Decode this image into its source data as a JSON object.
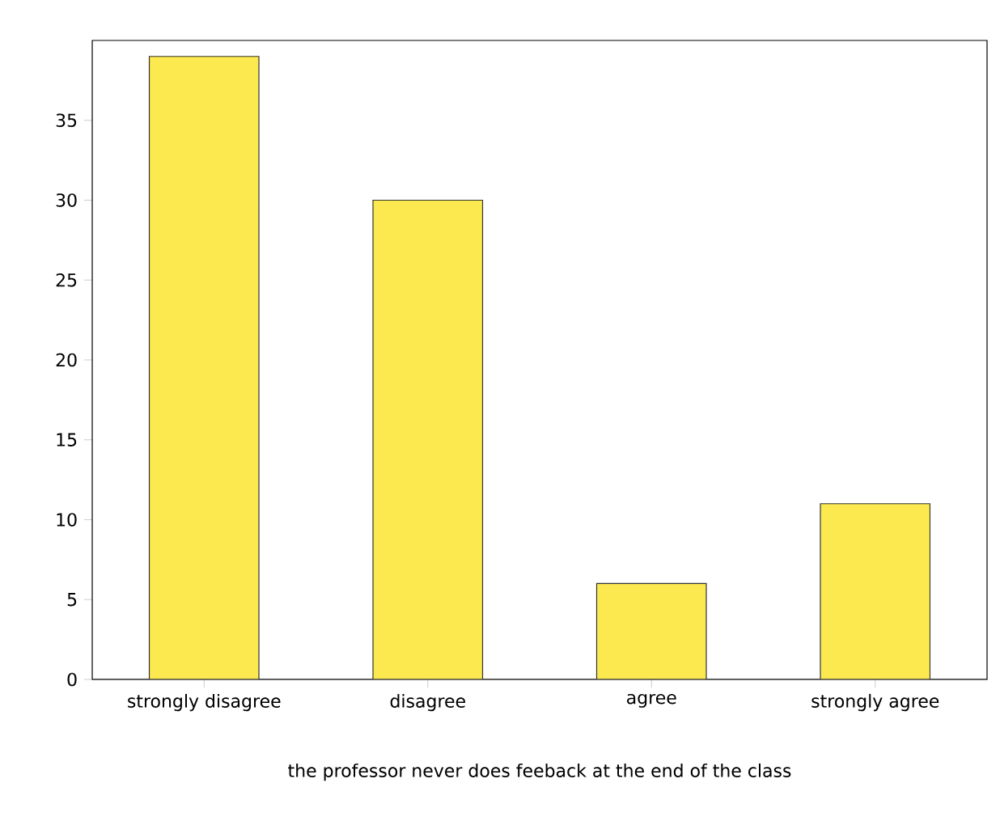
{
  "chart_data": {
    "type": "bar",
    "xlabel": "the professor never does feeback at the end of the class",
    "categories": [
      "strongly disagree",
      "disagree",
      "agree",
      "strongly agree"
    ],
    "values": [
      39,
      30,
      6,
      11
    ],
    "color": "#fce94f",
    "ylim": [
      0,
      40
    ],
    "yticks": [
      0,
      5,
      10,
      15,
      20,
      25,
      30,
      35
    ]
  }
}
